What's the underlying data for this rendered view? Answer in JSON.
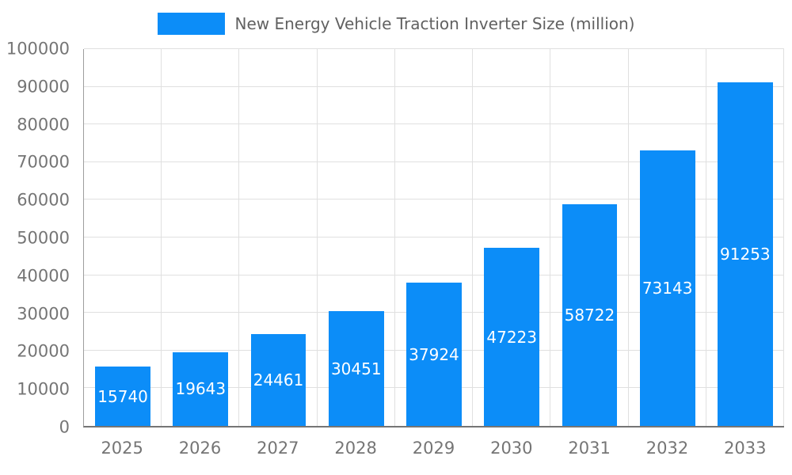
{
  "chart_data": {
    "type": "bar",
    "title": "New Energy Vehicle Traction Inverter Size (million)",
    "categories": [
      "2025",
      "2026",
      "2027",
      "2028",
      "2029",
      "2030",
      "2031",
      "2032",
      "2033"
    ],
    "values": [
      15740,
      19643,
      24461,
      30451,
      37924,
      47223,
      58722,
      73143,
      91253
    ],
    "xlabel": "",
    "ylabel": "",
    "ylim": [
      0,
      100000
    ],
    "ytick_step": 10000,
    "ytick_labels": [
      "0",
      "10000",
      "20000",
      "30000",
      "40000",
      "50000",
      "60000",
      "70000",
      "80000",
      "90000",
      "100000"
    ],
    "grid": "on",
    "legend_position": "top",
    "bar_labels_inside": true,
    "colors": {
      "bar": "#0c8df8",
      "bar_label": "#ffffff",
      "axis_text": "#757575",
      "legend_text": "#616161",
      "grid_line": "#e0e0e0",
      "axis_line": "#9e9e9e"
    }
  }
}
